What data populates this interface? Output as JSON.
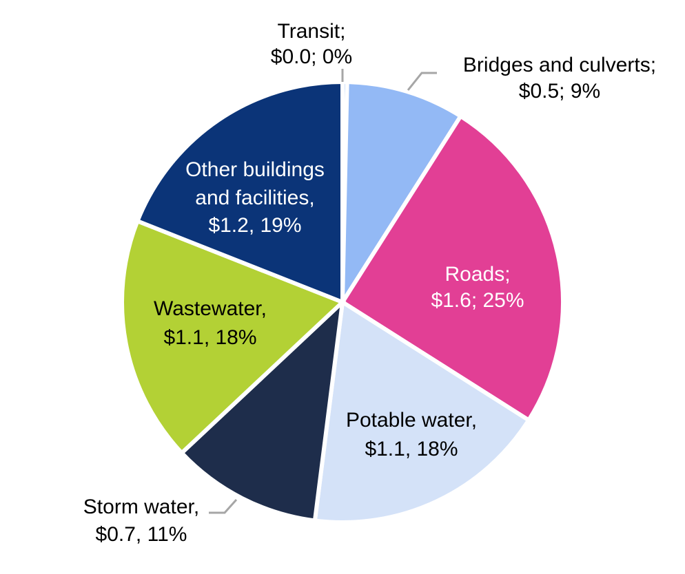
{
  "chart_data": {
    "type": "pie",
    "title": "",
    "slices": [
      {
        "name": "Transit",
        "value": 0.0,
        "percent": 0,
        "label_lines": [
          "Transit;",
          "$0.0; 0%"
        ],
        "color": "#9ec2f5",
        "label_color": "#000000"
      },
      {
        "name": "Bridges and culverts",
        "value": 0.5,
        "percent": 9,
        "label_lines": [
          "Bridges and culverts;",
          "$0.5; 9%"
        ],
        "color": "#93b9f5",
        "label_color": "#000000"
      },
      {
        "name": "Roads",
        "value": 1.6,
        "percent": 25,
        "label_lines": [
          "Roads;",
          "$1.6; 25%"
        ],
        "color": "#e23f95",
        "label_color": "#ffffff"
      },
      {
        "name": "Potable water",
        "value": 1.1,
        "percent": 18,
        "label_lines": [
          "Potable water,",
          "$1.1, 18%"
        ],
        "color": "#d4e2f8",
        "label_color": "#000000"
      },
      {
        "name": "Storm water",
        "value": 0.7,
        "percent": 11,
        "label_lines": [
          "Storm water,",
          "$0.7, 11%"
        ],
        "color": "#1e2d4b",
        "label_color": "#000000"
      },
      {
        "name": "Wastewater",
        "value": 1.1,
        "percent": 18,
        "label_lines": [
          "Wastewater,",
          "$1.1, 18%"
        ],
        "color": "#b3d135",
        "label_color": "#000000"
      },
      {
        "name": "Other buildings and facilities",
        "value": 1.2,
        "percent": 19,
        "label_lines": [
          "Other buildings",
          "and facilities,",
          "$1.2, 19%"
        ],
        "color": "#0b3478",
        "label_color": "#ffffff"
      }
    ]
  }
}
